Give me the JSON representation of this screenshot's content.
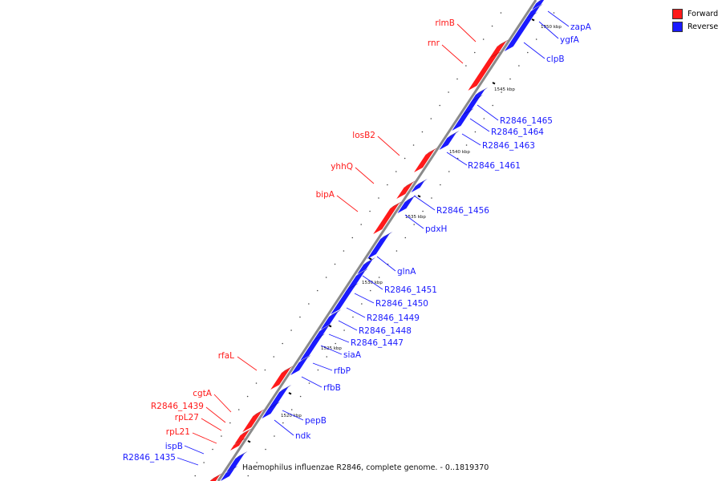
{
  "caption": "Haemophilus influenzae R2846, complete genome. - 0..1819370",
  "legend": [
    {
      "label": "Forward",
      "color": "#ff1a1a"
    },
    {
      "label": "Reverse",
      "color": "#1a1aff"
    }
  ],
  "colors": {
    "forward": "#ff1a1a",
    "reverse": "#1a1aff",
    "axis": "#888888"
  },
  "ticks": [
    "1520 kbp",
    "1525 kbp",
    "1530 kbp",
    "1535 kbp",
    "1540 kbp",
    "1545 kbp",
    "1550 kbp"
  ],
  "forward_genes": [
    "rlmB",
    "rnr",
    "losB2",
    "yhhQ",
    "bipA",
    "rfaL",
    "cgtA",
    "R2846_1439",
    "rpL27",
    "rpL21"
  ],
  "reverse_genes": [
    "zapA",
    "ygfA",
    "clpB",
    "R2846_1465",
    "R2846_1464",
    "R2846_1463",
    "R2846_1461",
    "R2846_1456",
    "pdxH",
    "glnA",
    "R2846_1451",
    "R2846_1450",
    "R2846_1449",
    "R2846_1448",
    "R2846_1447",
    "siaA",
    "rfbP",
    "rfbB",
    "pepB",
    "ndk",
    "ispB",
    "R2846_1435"
  ]
}
